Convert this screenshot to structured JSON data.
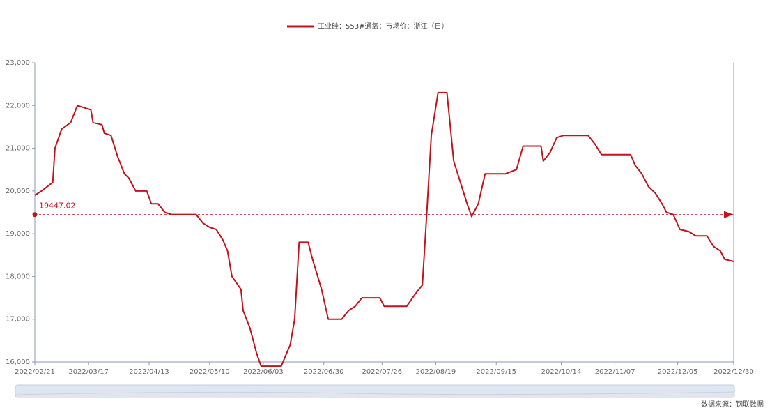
{
  "chart_data": {
    "type": "line",
    "series": [
      {
        "name": "工业硅：553#通氧：市场价：浙江（日）",
        "color": "#c0141c",
        "values": [
          19900,
          20000,
          20200,
          21000,
          21450,
          21600,
          22000,
          21950,
          21900,
          21600,
          21550,
          21350,
          21300,
          20800,
          20400,
          20300,
          20000,
          20000,
          19700,
          19700,
          19500,
          19450,
          19450,
          19250,
          19150,
          19100,
          18850,
          18600,
          18000,
          17700,
          17200,
          16800,
          16200,
          15900,
          15900,
          16400,
          17000,
          18800,
          18800,
          18400,
          17700,
          17000,
          17000,
          17200,
          17300,
          17500,
          17500,
          17300,
          17300,
          17600,
          17800,
          19500,
          21300,
          22300,
          22300,
          20700,
          20200,
          19700,
          19400,
          19700,
          20400,
          20400,
          20500,
          21050,
          21050,
          20700,
          20900,
          21250,
          21300,
          21300,
          21100,
          20850,
          20850,
          20600,
          20400,
          20100,
          19950,
          19700,
          19500,
          19450,
          19100,
          19050,
          18950,
          18950,
          18700,
          18600,
          18400,
          18350
        ]
      }
    ],
    "x": [
      "2022/02/21",
      "2022/02/24",
      "2022/03/01",
      "2022/03/02",
      "2022/03/05",
      "2022/03/09",
      "2022/03/12",
      "2022/03/15",
      "2022/03/18",
      "2022/03/19",
      "2022/03/23",
      "2022/03/24",
      "2022/03/27",
      "2022/03/30",
      "2022/04/02",
      "2022/04/04",
      "2022/04/07",
      "2022/04/12",
      "2022/04/14",
      "2022/04/17",
      "2022/04/20",
      "2022/04/23",
      "2022/05/04",
      "2022/05/07",
      "2022/05/10",
      "2022/05/13",
      "2022/05/16",
      "2022/05/18",
      "2022/05/20",
      "2022/05/24",
      "2022/05/25",
      "2022/05/28",
      "2022/05/31",
      "2022/06/02",
      "2022/06/11",
      "2022/06/15",
      "2022/06/17",
      "2022/06/19",
      "2022/06/23",
      "2022/06/25",
      "2022/06/29",
      "2022/07/02",
      "2022/07/08",
      "2022/07/11",
      "2022/07/14",
      "2022/07/17",
      "2022/07/25",
      "2022/07/27",
      "2022/08/06",
      "2022/08/10",
      "2022/08/13",
      "2022/08/15",
      "2022/08/17",
      "2022/08/20",
      "2022/08/24",
      "2022/08/27",
      "2022/08/30",
      "2022/09/02",
      "2022/09/04",
      "2022/09/07",
      "2022/09/10",
      "2022/09/19",
      "2022/09/24",
      "2022/09/27",
      "2022/10/05",
      "2022/10/06",
      "2022/10/09",
      "2022/10/12",
      "2022/10/15",
      "2022/10/26",
      "2022/10/29",
      "2022/11/01",
      "2022/11/14",
      "2022/11/16",
      "2022/11/19",
      "2022/11/22",
      "2022/11/25",
      "2022/11/28",
      "2022/11/30",
      "2022/12/03",
      "2022/12/06",
      "2022/12/10",
      "2022/12/13",
      "2022/12/18",
      "2022/12/21",
      "2022/12/24",
      "2022/12/26",
      "2022/12/30"
    ],
    "xlim": [
      "2022/02/21",
      "2022/12/30"
    ],
    "xticks": [
      "2022/02/21",
      "2022/03/17",
      "2022/04/13",
      "2022/05/10",
      "2022/06/03",
      "2022/06/30",
      "2022/07/26",
      "2022/08/19",
      "2022/09/15",
      "2022/10/14",
      "2022/11/07",
      "2022/12/05",
      "2022/12/30"
    ],
    "ylim": [
      16000,
      23000
    ],
    "yticks": [
      {
        "value": 16000,
        "label": "16,000"
      },
      {
        "value": 17000,
        "label": "17,000"
      },
      {
        "value": 18000,
        "label": "18,000"
      },
      {
        "value": 19000,
        "label": "19,000"
      },
      {
        "value": 20000,
        "label": "20,000"
      },
      {
        "value": 21000,
        "label": "21,000"
      },
      {
        "value": 22000,
        "label": "22,000"
      },
      {
        "value": 23000,
        "label": "23,000"
      }
    ],
    "mark_line": {
      "value": 19447.02
    },
    "source": "数据来源：钢联数据"
  }
}
